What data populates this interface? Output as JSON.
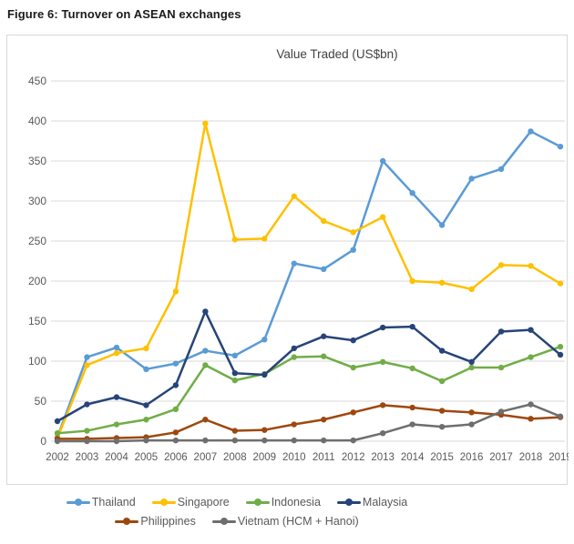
{
  "figure": {
    "caption": "Figure 6: Turnover on ASEAN exchanges"
  },
  "chart_data": {
    "type": "line",
    "title": "Value Traded (US$bn)",
    "xlabel": "",
    "ylabel": "",
    "x": [
      2002,
      2003,
      2004,
      2005,
      2006,
      2007,
      2008,
      2009,
      2010,
      2011,
      2012,
      2013,
      2014,
      2015,
      2016,
      2017,
      2018,
      2019
    ],
    "ylim": [
      0,
      450
    ],
    "ytick_step": 50,
    "grid": true,
    "legend_position": "bottom",
    "legend_rows": [
      [
        "Thailand",
        "Singapore",
        "Indonesia",
        "Malaysia"
      ],
      [
        "Philippines",
        "Vietnam (HCM + Hanoi)"
      ]
    ],
    "series": [
      {
        "name": "Thailand",
        "color": "#5B9BD5",
        "values": [
          5,
          105,
          117,
          90,
          97,
          113,
          107,
          127,
          222,
          215,
          239,
          350,
          310,
          270,
          328,
          340,
          387,
          368
        ]
      },
      {
        "name": "Singapore",
        "color": "#FFC000",
        "values": [
          4,
          95,
          110,
          116,
          187,
          397,
          252,
          253,
          306,
          275,
          261,
          280,
          200,
          198,
          190,
          220,
          219,
          197
        ]
      },
      {
        "name": "Indonesia",
        "color": "#70AD47",
        "values": [
          10,
          13,
          21,
          27,
          40,
          95,
          76,
          84,
          105,
          106,
          92,
          99,
          91,
          75,
          92,
          92,
          105,
          118
        ]
      },
      {
        "name": "Malaysia",
        "color": "#264478",
        "values": [
          25,
          46,
          55,
          45,
          70,
          162,
          85,
          83,
          116,
          131,
          126,
          142,
          143,
          113,
          99,
          137,
          139,
          108
        ]
      },
      {
        "name": "Philippines",
        "color": "#9E480E",
        "values": [
          3,
          3,
          4,
          5,
          11,
          27,
          13,
          14,
          21,
          27,
          36,
          45,
          42,
          38,
          36,
          33,
          28,
          30
        ]
      },
      {
        "name": "Vietnam (HCM + Hanoi)",
        "color": "#6E6E6E",
        "values": [
          0,
          0,
          0,
          1,
          1,
          1,
          1,
          1,
          1,
          1,
          1,
          10,
          21,
          18,
          21,
          37,
          46,
          31
        ]
      }
    ],
    "colors": {
      "grid": "#D9D9D9",
      "axis_text": "#595959",
      "title_text": "#404040"
    }
  }
}
